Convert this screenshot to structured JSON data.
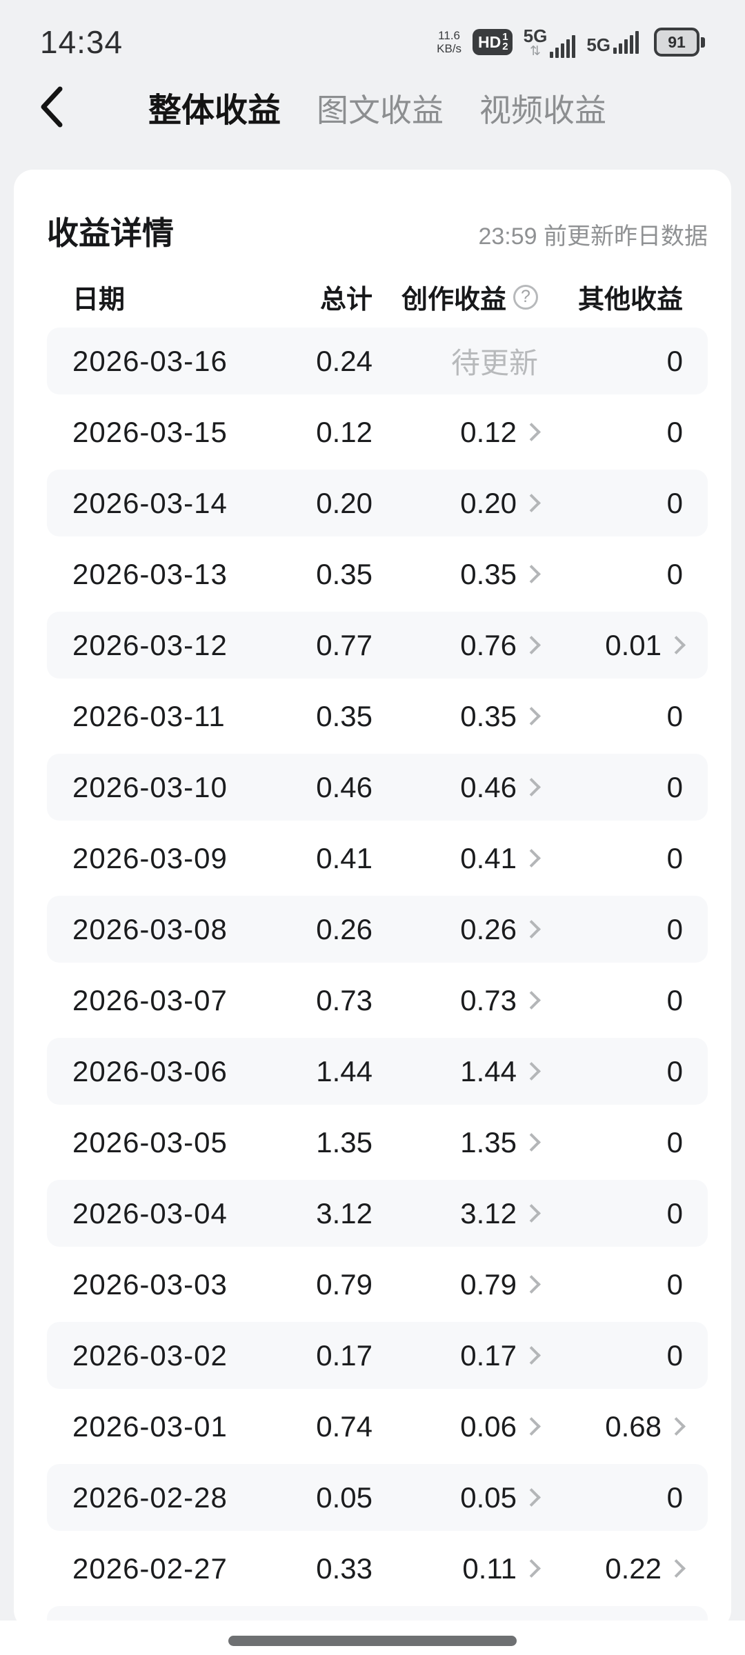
{
  "status_bar": {
    "time": "14:34",
    "net_speed_value": "11.6",
    "net_speed_unit": "KB/s",
    "hd_label": "HD",
    "hd_sim1": "1",
    "hd_sim2": "2",
    "network1": "5G",
    "network1_arrows": "⇅",
    "network2": "5G",
    "battery_percent": "91"
  },
  "nav": {
    "tabs": [
      {
        "label": "整体收益",
        "active": true
      },
      {
        "label": "图文收益",
        "active": false
      },
      {
        "label": "视频收益",
        "active": false
      }
    ]
  },
  "card": {
    "title": "收益详情",
    "update_note": "23:59 前更新昨日数据"
  },
  "table": {
    "headers": {
      "date": "日期",
      "total": "总计",
      "creation": "创作收益",
      "creation_help": "?",
      "other": "其他收益"
    },
    "rows": [
      {
        "date": "2026-03-16",
        "total": "0.24",
        "creation": "待更新",
        "creation_pending": true,
        "creation_chevron": false,
        "other": "0",
        "other_chevron": false,
        "shaded": true
      },
      {
        "date": "2026-03-15",
        "total": "0.12",
        "creation": "0.12",
        "creation_pending": false,
        "creation_chevron": true,
        "other": "0",
        "other_chevron": false,
        "shaded": false
      },
      {
        "date": "2026-03-14",
        "total": "0.20",
        "creation": "0.20",
        "creation_pending": false,
        "creation_chevron": true,
        "other": "0",
        "other_chevron": false,
        "shaded": true
      },
      {
        "date": "2026-03-13",
        "total": "0.35",
        "creation": "0.35",
        "creation_pending": false,
        "creation_chevron": true,
        "other": "0",
        "other_chevron": false,
        "shaded": false
      },
      {
        "date": "2026-03-12",
        "total": "0.77",
        "creation": "0.76",
        "creation_pending": false,
        "creation_chevron": true,
        "other": "0.01",
        "other_chevron": true,
        "shaded": true
      },
      {
        "date": "2026-03-11",
        "total": "0.35",
        "creation": "0.35",
        "creation_pending": false,
        "creation_chevron": true,
        "other": "0",
        "other_chevron": false,
        "shaded": false
      },
      {
        "date": "2026-03-10",
        "total": "0.46",
        "creation": "0.46",
        "creation_pending": false,
        "creation_chevron": true,
        "other": "0",
        "other_chevron": false,
        "shaded": true
      },
      {
        "date": "2026-03-09",
        "total": "0.41",
        "creation": "0.41",
        "creation_pending": false,
        "creation_chevron": true,
        "other": "0",
        "other_chevron": false,
        "shaded": false
      },
      {
        "date": "2026-03-08",
        "total": "0.26",
        "creation": "0.26",
        "creation_pending": false,
        "creation_chevron": true,
        "other": "0",
        "other_chevron": false,
        "shaded": true
      },
      {
        "date": "2026-03-07",
        "total": "0.73",
        "creation": "0.73",
        "creation_pending": false,
        "creation_chevron": true,
        "other": "0",
        "other_chevron": false,
        "shaded": false
      },
      {
        "date": "2026-03-06",
        "total": "1.44",
        "creation": "1.44",
        "creation_pending": false,
        "creation_chevron": true,
        "other": "0",
        "other_chevron": false,
        "shaded": true
      },
      {
        "date": "2026-03-05",
        "total": "1.35",
        "creation": "1.35",
        "creation_pending": false,
        "creation_chevron": true,
        "other": "0",
        "other_chevron": false,
        "shaded": false
      },
      {
        "date": "2026-03-04",
        "total": "3.12",
        "creation": "3.12",
        "creation_pending": false,
        "creation_chevron": true,
        "other": "0",
        "other_chevron": false,
        "shaded": true
      },
      {
        "date": "2026-03-03",
        "total": "0.79",
        "creation": "0.79",
        "creation_pending": false,
        "creation_chevron": true,
        "other": "0",
        "other_chevron": false,
        "shaded": false
      },
      {
        "date": "2026-03-02",
        "total": "0.17",
        "creation": "0.17",
        "creation_pending": false,
        "creation_chevron": true,
        "other": "0",
        "other_chevron": false,
        "shaded": true
      },
      {
        "date": "2026-03-01",
        "total": "0.74",
        "creation": "0.06",
        "creation_pending": false,
        "creation_chevron": true,
        "other": "0.68",
        "other_chevron": true,
        "shaded": false
      },
      {
        "date": "2026-02-28",
        "total": "0.05",
        "creation": "0.05",
        "creation_pending": false,
        "creation_chevron": true,
        "other": "0",
        "other_chevron": false,
        "shaded": true
      },
      {
        "date": "2026-02-27",
        "total": "0.33",
        "creation": "0.11",
        "creation_pending": false,
        "creation_chevron": true,
        "other": "0.22",
        "other_chevron": true,
        "shaded": false
      }
    ],
    "partial_row_visible": true
  },
  "colors": {
    "page_bg": "#f0f1f3",
    "card_bg": "#ffffff",
    "row_shaded_bg": "#f7f8fa",
    "text_primary": "#17181a",
    "text_secondary": "#8f9193",
    "text_disabled": "#b7b9bb",
    "status_icon": "#3a3c3e",
    "home_indicator": "#6e7072"
  }
}
